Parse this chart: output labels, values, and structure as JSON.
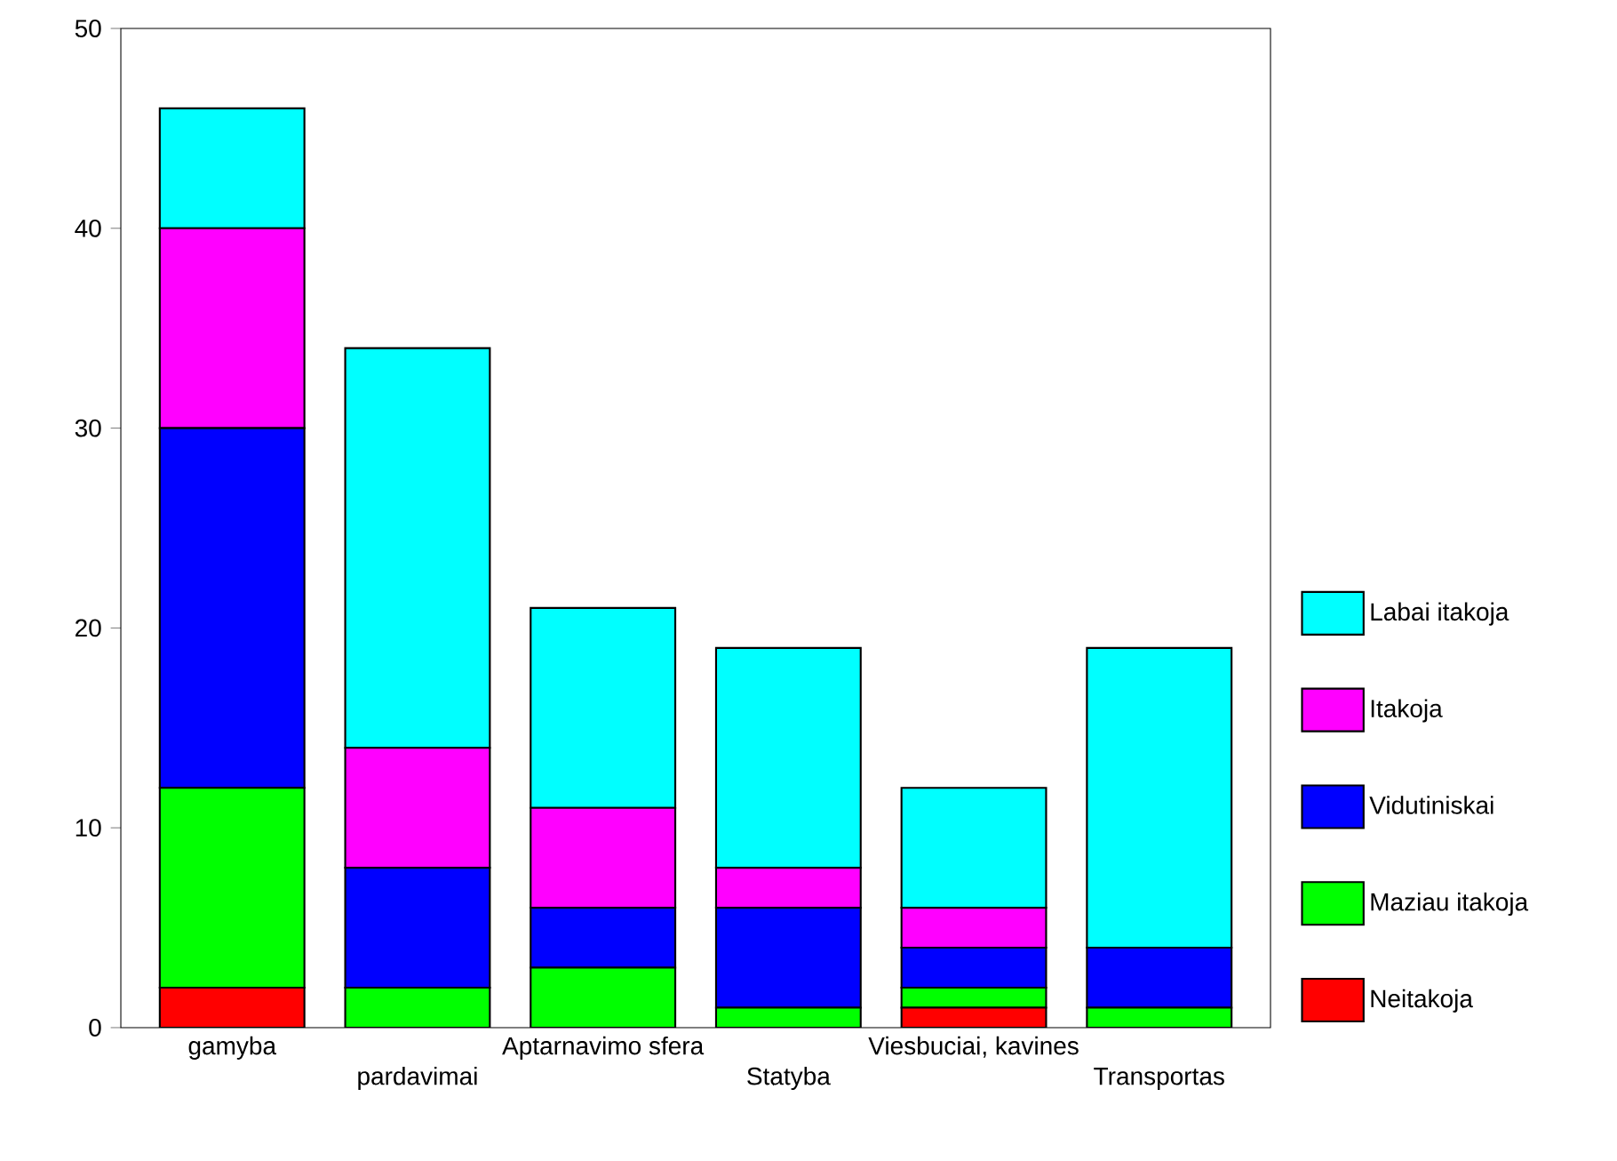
{
  "chart_data": {
    "type": "bar",
    "stacked": true,
    "categories": [
      "gamyba",
      "pardavimai",
      "Aptarnavimo sfera",
      "Statyba",
      "Viesbuciai, kavines",
      "Transportas"
    ],
    "series": [
      {
        "name": "Neitakoja",
        "color": "#ff0000",
        "values": [
          2,
          0,
          0,
          0,
          1,
          0
        ]
      },
      {
        "name": "Maziau itakoja",
        "color": "#00ff00",
        "values": [
          10,
          2,
          3,
          1,
          1,
          1
        ]
      },
      {
        "name": "Vidutiniskai",
        "color": "#0000ff",
        "values": [
          18,
          6,
          3,
          5,
          2,
          3
        ]
      },
      {
        "name": "Itakoja",
        "color": "#ff00ff",
        "values": [
          10,
          6,
          5,
          2,
          2,
          0
        ]
      },
      {
        "name": "Labai itakoja",
        "color": "#00ffff",
        "values": [
          6,
          20,
          10,
          11,
          6,
          15
        ]
      }
    ],
    "ylim": [
      0,
      50
    ],
    "yticks": [
      0,
      10,
      20,
      30,
      40,
      50
    ],
    "legend": "right"
  }
}
